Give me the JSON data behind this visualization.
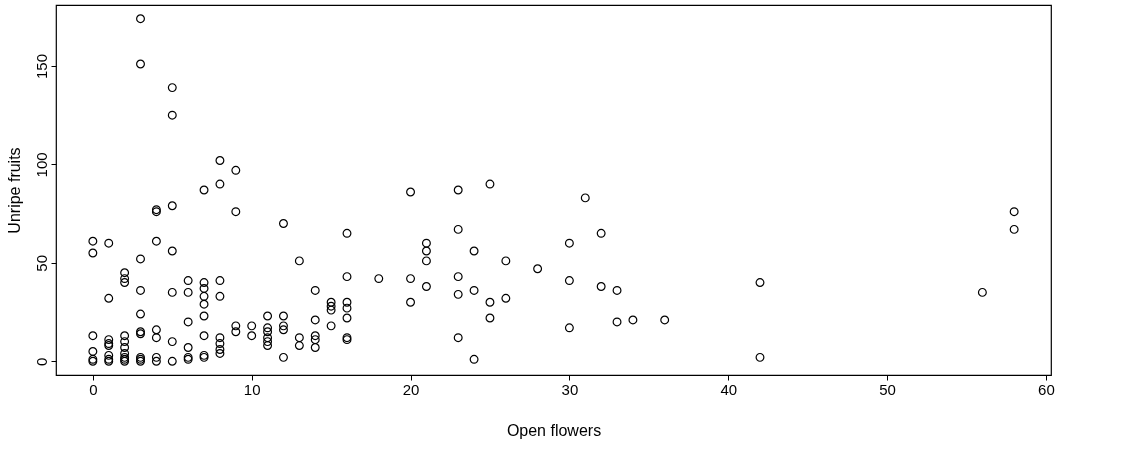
{
  "chart_data": {
    "type": "scatter",
    "xlabel": "Open flowers",
    "ylabel": "Unripe fruits",
    "x": [
      0,
      0,
      0,
      0,
      0,
      0,
      1,
      1,
      1,
      1,
      1,
      1,
      1,
      1,
      2,
      2,
      2,
      2,
      2,
      2,
      2,
      2,
      2,
      2,
      3,
      3,
      3,
      3,
      3,
      3,
      3,
      3,
      3,
      3,
      4,
      4,
      4,
      4,
      4,
      4,
      4,
      5,
      5,
      5,
      5,
      5,
      5,
      5,
      6,
      6,
      6,
      6,
      6,
      6,
      7,
      7,
      7,
      7,
      7,
      7,
      7,
      7,
      7,
      8,
      8,
      8,
      8,
      8,
      8,
      8,
      8,
      9,
      9,
      9,
      9,
      10,
      10,
      11,
      11,
      11,
      11,
      11,
      11,
      12,
      12,
      12,
      12,
      12,
      13,
      13,
      13,
      14,
      14,
      14,
      14,
      14,
      15,
      15,
      15,
      15,
      16,
      16,
      16,
      16,
      16,
      16,
      16,
      18,
      20,
      20,
      20,
      21,
      21,
      21,
      21,
      23,
      23,
      23,
      23,
      23,
      24,
      24,
      24,
      25,
      25,
      25,
      26,
      26,
      28,
      30,
      30,
      30,
      31,
      32,
      32,
      33,
      33,
      34,
      36,
      42,
      42,
      56,
      58,
      58
    ],
    "values": [
      61,
      55,
      13,
      5,
      1,
      0,
      60,
      32,
      11,
      9,
      8,
      3,
      0,
      1,
      45,
      42,
      40,
      13,
      10,
      7,
      4,
      2,
      0,
      1,
      174,
      151,
      52,
      36,
      24,
      15,
      14,
      2,
      1,
      0,
      77,
      76,
      61,
      16,
      12,
      2,
      0,
      139,
      125,
      79,
      56,
      35,
      10,
      0,
      41,
      35,
      20,
      7,
      2,
      1,
      87,
      40,
      37,
      33,
      29,
      23,
      13,
      3,
      2,
      102,
      90,
      41,
      33,
      12,
      9,
      6,
      4,
      97,
      76,
      18,
      15,
      18,
      13,
      23,
      17,
      15,
      12,
      10,
      8,
      70,
      23,
      18,
      16,
      2,
      51,
      12,
      8,
      36,
      21,
      13,
      11,
      7,
      30,
      28,
      26,
      18,
      65,
      43,
      30,
      27,
      22,
      12,
      11,
      42,
      86,
      42,
      30,
      60,
      56,
      51,
      38,
      87,
      67,
      43,
      34,
      12,
      56,
      36,
      1,
      90,
      30,
      22,
      51,
      32,
      47,
      60,
      41,
      17,
      83,
      65,
      38,
      36,
      20,
      21,
      21,
      40,
      2,
      35,
      76,
      67
    ],
    "color": "#000000",
    "marker": "circle",
    "xlim": [
      -2.32,
      60.32
    ],
    "ylim": [
      -6.96,
      180.96
    ],
    "xticks": [
      0,
      10,
      20,
      30,
      40,
      50,
      60
    ],
    "yticks": [
      0,
      50,
      100,
      150
    ],
    "grid": false
  }
}
